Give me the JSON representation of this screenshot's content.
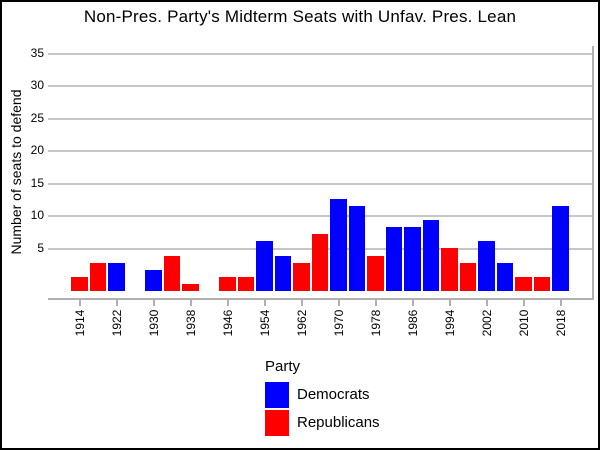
{
  "title": "Non-Pres. Party's Midterm Seats with Unfav. Pres. Lean",
  "y_axis": {
    "label": "Number of seats to defend",
    "ticks": [
      5,
      10,
      15,
      20,
      25,
      30,
      35
    ]
  },
  "x_axis": {
    "tick_labels": [
      "1914",
      "1922",
      "1930",
      "1938",
      "1946",
      "1954",
      "1962",
      "1970",
      "1978",
      "1986",
      "1994",
      "2002",
      "2010",
      "2018"
    ]
  },
  "legend": {
    "title": "Party",
    "items": [
      {
        "label": "Democrats",
        "color": "#0000ff"
      },
      {
        "label": "Republicans",
        "color": "#ff0000"
      }
    ]
  },
  "colors": {
    "democrats": "#0000ff",
    "republicans": "#ff0000",
    "gridline": "#c6c6c6",
    "axis": "#b0b0b0",
    "background": "#ffffff",
    "border": "#000000",
    "text": "#000000"
  },
  "chart_data": {
    "type": "bar",
    "title": "Non-Pres. Party's Midterm Seats with Unfav. Pres. Lean",
    "xlabel": "",
    "ylabel": "Number of seats to defend",
    "ylim": [
      0,
      35
    ],
    "grid": true,
    "legend_position": "bottom",
    "x_tick_labels": [
      "1914",
      "1922",
      "1930",
      "1938",
      "1946",
      "1954",
      "1962",
      "1970",
      "1978",
      "1986",
      "1994",
      "2002",
      "2010",
      "2018"
    ],
    "bars": [
      {
        "year": 1914,
        "party": "Republicans",
        "seats": 2
      },
      {
        "year": 1918,
        "party": "Republicans",
        "seats": 4
      },
      {
        "year": 1922,
        "party": "Democrats",
        "seats": 4
      },
      {
        "year": 1926,
        "party": null,
        "seats": 0
      },
      {
        "year": 1930,
        "party": "Democrats",
        "seats": 3
      },
      {
        "year": 1934,
        "party": "Republicans",
        "seats": 5
      },
      {
        "year": 1938,
        "party": "Republicans",
        "seats": 1
      },
      {
        "year": 1942,
        "party": null,
        "seats": 0
      },
      {
        "year": 1946,
        "party": "Republicans",
        "seats": 2
      },
      {
        "year": 1950,
        "party": "Republicans",
        "seats": 2
      },
      {
        "year": 1954,
        "party": "Democrats",
        "seats": 7
      },
      {
        "year": 1958,
        "party": "Democrats",
        "seats": 5
      },
      {
        "year": 1962,
        "party": "Republicans",
        "seats": 4
      },
      {
        "year": 1966,
        "party": "Republicans",
        "seats": 8
      },
      {
        "year": 1970,
        "party": "Democrats",
        "seats": 13
      },
      {
        "year": 1974,
        "party": "Democrats",
        "seats": 12
      },
      {
        "year": 1978,
        "party": "Republicans",
        "seats": 5
      },
      {
        "year": 1982,
        "party": "Democrats",
        "seats": 9
      },
      {
        "year": 1986,
        "party": "Democrats",
        "seats": 9
      },
      {
        "year": 1990,
        "party": "Democrats",
        "seats": 10
      },
      {
        "year": 1994,
        "party": "Republicans",
        "seats": 6
      },
      {
        "year": 1998,
        "party": "Republicans",
        "seats": 4
      },
      {
        "year": 2002,
        "party": "Democrats",
        "seats": 7
      },
      {
        "year": 2006,
        "party": "Democrats",
        "seats": 4
      },
      {
        "year": 2010,
        "party": "Republicans",
        "seats": 2
      },
      {
        "year": 2014,
        "party": "Republicans",
        "seats": 2
      },
      {
        "year": 2018,
        "party": "Democrats",
        "seats": 12
      }
    ]
  }
}
